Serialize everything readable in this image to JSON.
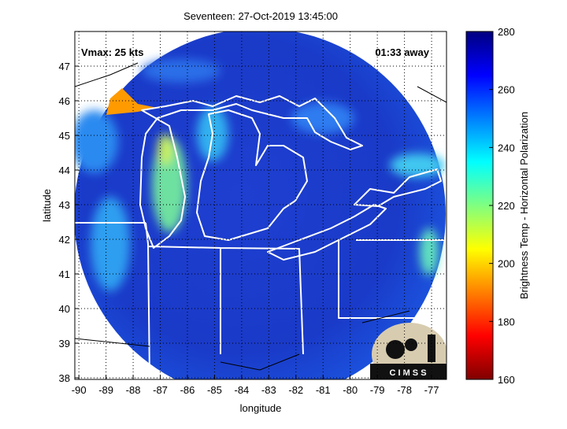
{
  "chart_data": {
    "type": "map",
    "title": "Seventeen: 27-Oct-2019 13:45:00",
    "x_label": "longitude",
    "y_label": "latitude",
    "xlim": [
      -90.15,
      -76.45
    ],
    "ylim": [
      38,
      48
    ],
    "xticks": [
      -90,
      -89,
      -88,
      -87,
      -86,
      -85,
      -84,
      -83,
      -82,
      -81,
      -80,
      -79,
      -78,
      -77
    ],
    "yticks": [
      38,
      39,
      40,
      41,
      42,
      43,
      44,
      45,
      46,
      47
    ],
    "grid": true,
    "colorbar_label": "Brightness Temp - Horizontal Polarization",
    "clim": [
      160,
      280
    ],
    "cticks": [
      160,
      180,
      200,
      220,
      240,
      260,
      280
    ],
    "annotations": [
      "Vmax: 25 kts",
      "01:33 away"
    ],
    "logo": "C I M S S"
  }
}
